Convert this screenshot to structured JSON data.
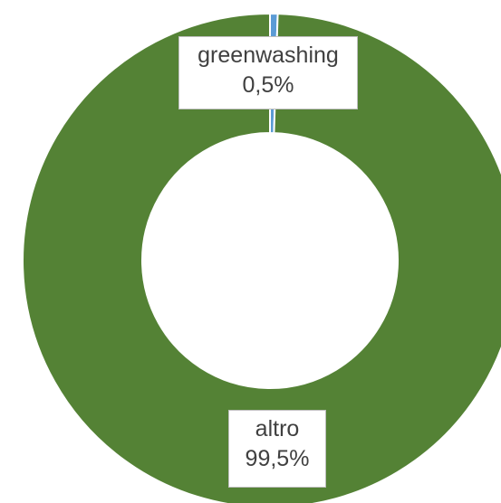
{
  "chart_data": {
    "type": "pie",
    "variant": "donut",
    "title": "",
    "slices": [
      {
        "label": "greenwashing",
        "value": 0.5,
        "display": "0,5%",
        "color": "#5b9bd5"
      },
      {
        "label": "altro",
        "value": 99.5,
        "display": "99,5%",
        "color": "#548235"
      }
    ],
    "legend": "none",
    "start_angle_deg": 0,
    "direction": "clockwise"
  }
}
